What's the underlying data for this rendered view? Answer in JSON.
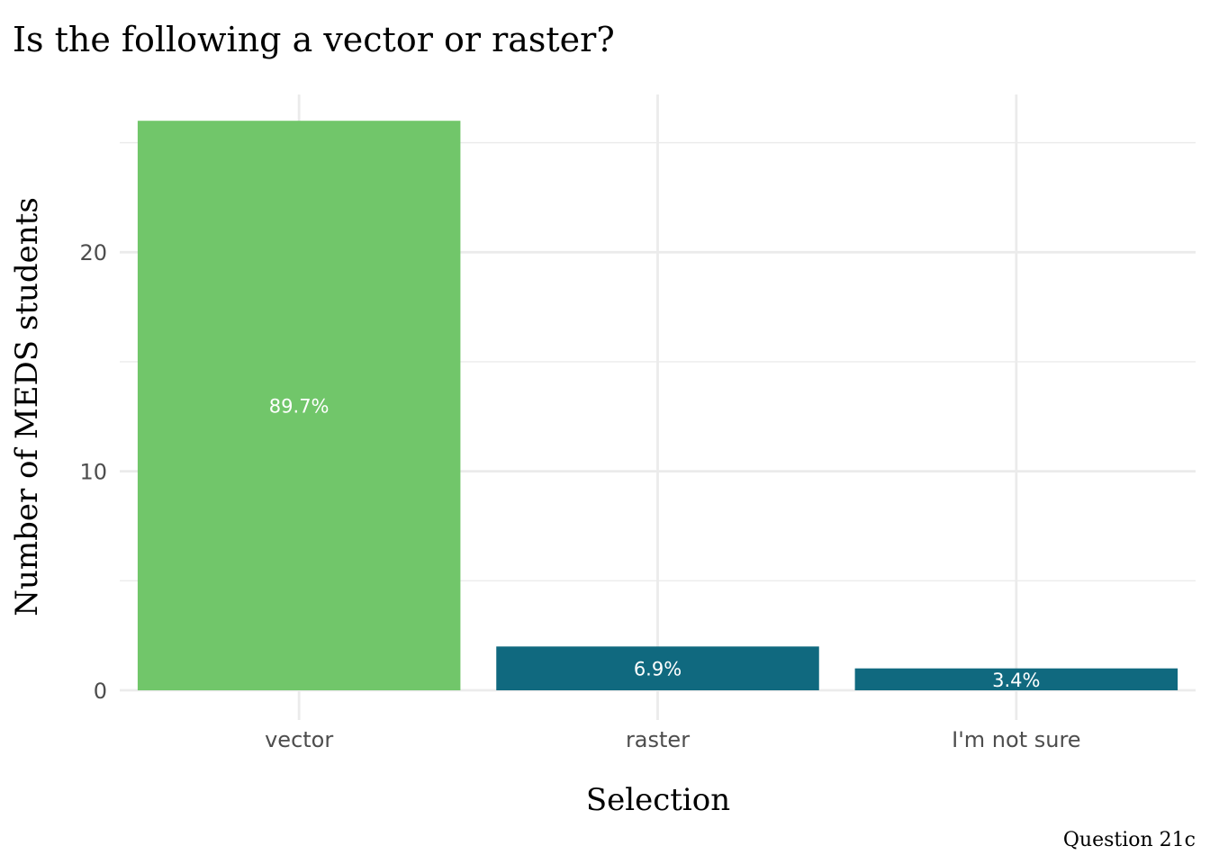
{
  "chart_data": {
    "type": "bar",
    "title": "Is the following a vector or raster?",
    "xlabel": "Selection",
    "ylabel": "Number of MEDS students",
    "caption": "Question 21c",
    "categories": [
      "vector",
      "raster",
      "I'm not sure"
    ],
    "values": [
      26,
      2,
      1
    ],
    "labels": [
      "89.7%",
      "6.9%",
      "3.4%"
    ],
    "colors": [
      "#71c66a",
      "#10697f",
      "#10697f"
    ],
    "ylim": [
      0,
      27.2
    ],
    "y_ticks": [
      0,
      10,
      20
    ],
    "y_minor_ticks": [
      5,
      15,
      25
    ],
    "y_tick_labels": [
      "0",
      "10",
      "20"
    ],
    "grid": true,
    "label_color": "#ffffff",
    "grid_color": "#ebebeb"
  }
}
